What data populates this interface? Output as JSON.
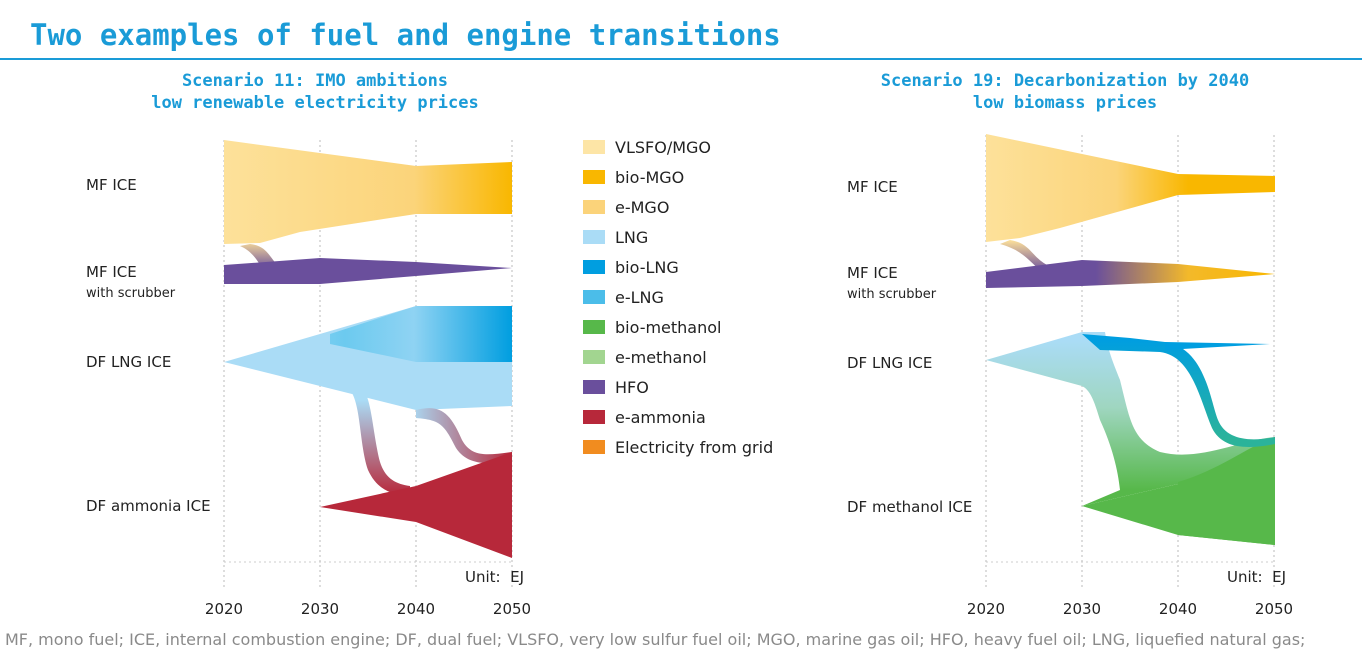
{
  "page": {
    "title": "Two examples of fuel and engine transitions",
    "footnote": "MF, mono fuel; ICE, internal combustion engine; DF, dual fuel; VLSFO, very low sulfur fuel oil; MGO, marine gas oil; HFO, heavy fuel oil; LNG, liquefied natural gas;"
  },
  "colors": {
    "accent": "#1a9bd7",
    "VLSFO/MGO": "#fde5a6",
    "bio-MGO": "#f9b700",
    "e-MGO": "#fbd37a",
    "LNG": "#aadcf6",
    "bio-LNG": "#009ee0",
    "e-LNG": "#4bbde9",
    "bio-methanol": "#57b84a",
    "e-methanol": "#a2d590",
    "HFO": "#6a4f9c",
    "e-ammonia": "#b7283a",
    "Electricity from grid": "#f18c1f"
  },
  "legend": {
    "items": [
      "VLSFO/MGO",
      "bio-MGO",
      "e-MGO",
      "LNG",
      "bio-LNG",
      "e-LNG",
      "bio-methanol",
      "e-methanol",
      "HFO",
      "e-ammonia",
      "Electricity from grid"
    ]
  },
  "chart_data": [
    {
      "type": "area",
      "title": "Scenario 11: IMO ambitions",
      "subtitle": "low renewable electricity prices",
      "x_ticks": [
        "2020",
        "2030",
        "2040",
        "2050"
      ],
      "xlim": [
        2020,
        2050
      ],
      "unit_label": "Unit:  EJ",
      "row_labels": [
        {
          "id": "mf",
          "text": "MF ICE",
          "sub": ""
        },
        {
          "id": "mfs",
          "text": "MF ICE",
          "sub": "with scrubber"
        },
        {
          "id": "lng",
          "text": "DF LNG ICE",
          "sub": ""
        },
        {
          "id": "nh3",
          "text": "DF ammonia ICE",
          "sub": ""
        }
      ],
      "series": [
        {
          "name": "VLSFO/MGO",
          "engine": "MF ICE",
          "x": [
            2020,
            2040,
            2050
          ],
          "values": [
            1.0,
            0.7,
            0.0
          ]
        },
        {
          "name": "e-MGO",
          "engine": "MF ICE",
          "x": [
            2020,
            2040,
            2050
          ],
          "values": [
            0.0,
            0.0,
            0.2
          ]
        },
        {
          "name": "bio-MGO",
          "engine": "MF ICE",
          "x": [
            2020,
            2040,
            2050
          ],
          "values": [
            0.0,
            0.0,
            0.35
          ]
        },
        {
          "name": "HFO",
          "engine": "MF ICE with scrubber",
          "x": [
            2020,
            2030,
            2040,
            2050
          ],
          "values": [
            0.18,
            0.14,
            0.1,
            0.0
          ]
        },
        {
          "name": "LNG",
          "engine": "DF LNG ICE",
          "x": [
            2020,
            2040,
            2050
          ],
          "values": [
            0.0,
            1.0,
            0.45
          ]
        },
        {
          "name": "e-LNG",
          "engine": "DF LNG ICE",
          "x": [
            2020,
            2040,
            2050
          ],
          "values": [
            0.0,
            0.0,
            0.15
          ]
        },
        {
          "name": "bio-LNG",
          "engine": "DF LNG ICE",
          "x": [
            2020,
            2040,
            2050
          ],
          "values": [
            0.0,
            0.0,
            0.55
          ]
        },
        {
          "name": "e-ammonia",
          "engine": "DF ammonia ICE",
          "x": [
            2030,
            2040,
            2050
          ],
          "values": [
            0.0,
            0.35,
            1.05
          ]
        }
      ]
    },
    {
      "type": "area",
      "title": "Scenario 19: Decarbonization by 2040",
      "subtitle": "low biomass prices",
      "x_ticks": [
        "2020",
        "2030",
        "2040",
        "2050"
      ],
      "xlim": [
        2020,
        2050
      ],
      "unit_label": "Unit:  EJ",
      "row_labels": [
        {
          "id": "mf",
          "text": "MF ICE",
          "sub": ""
        },
        {
          "id": "mfs",
          "text": "MF ICE",
          "sub": "with scrubber"
        },
        {
          "id": "lng",
          "text": "DF LNG ICE",
          "sub": ""
        },
        {
          "id": "meoh",
          "text": "DF methanol ICE",
          "sub": ""
        }
      ],
      "series": [
        {
          "name": "VLSFO/MGO",
          "engine": "MF ICE",
          "x": [
            2020,
            2040,
            2050
          ],
          "values": [
            1.05,
            0.0,
            0.0
          ]
        },
        {
          "name": "bio-MGO",
          "engine": "MF ICE",
          "x": [
            2020,
            2040,
            2050
          ],
          "values": [
            0.0,
            0.2,
            0.18
          ]
        },
        {
          "name": "HFO",
          "engine": "MF ICE with scrubber",
          "x": [
            2020,
            2030,
            2040,
            2050
          ],
          "values": [
            0.16,
            0.1,
            0.0,
            0.0
          ]
        },
        {
          "name": "bio-MGO",
          "engine": "MF ICE with scrubber",
          "x": [
            2020,
            2040,
            2050
          ],
          "values": [
            0.0,
            0.1,
            0.0
          ]
        },
        {
          "name": "LNG",
          "engine": "DF LNG ICE",
          "x": [
            2020,
            2030,
            2040,
            2050
          ],
          "values": [
            0.0,
            0.6,
            0.0,
            0.0
          ]
        },
        {
          "name": "bio-LNG",
          "engine": "DF LNG ICE",
          "x": [
            2030,
            2040,
            2050
          ],
          "values": [
            0.1,
            0.05,
            0.0
          ]
        },
        {
          "name": "bio-methanol",
          "engine": "DF methanol ICE",
          "x": [
            2030,
            2040,
            2050
          ],
          "values": [
            0.0,
            0.6,
            1.05
          ]
        }
      ]
    }
  ]
}
